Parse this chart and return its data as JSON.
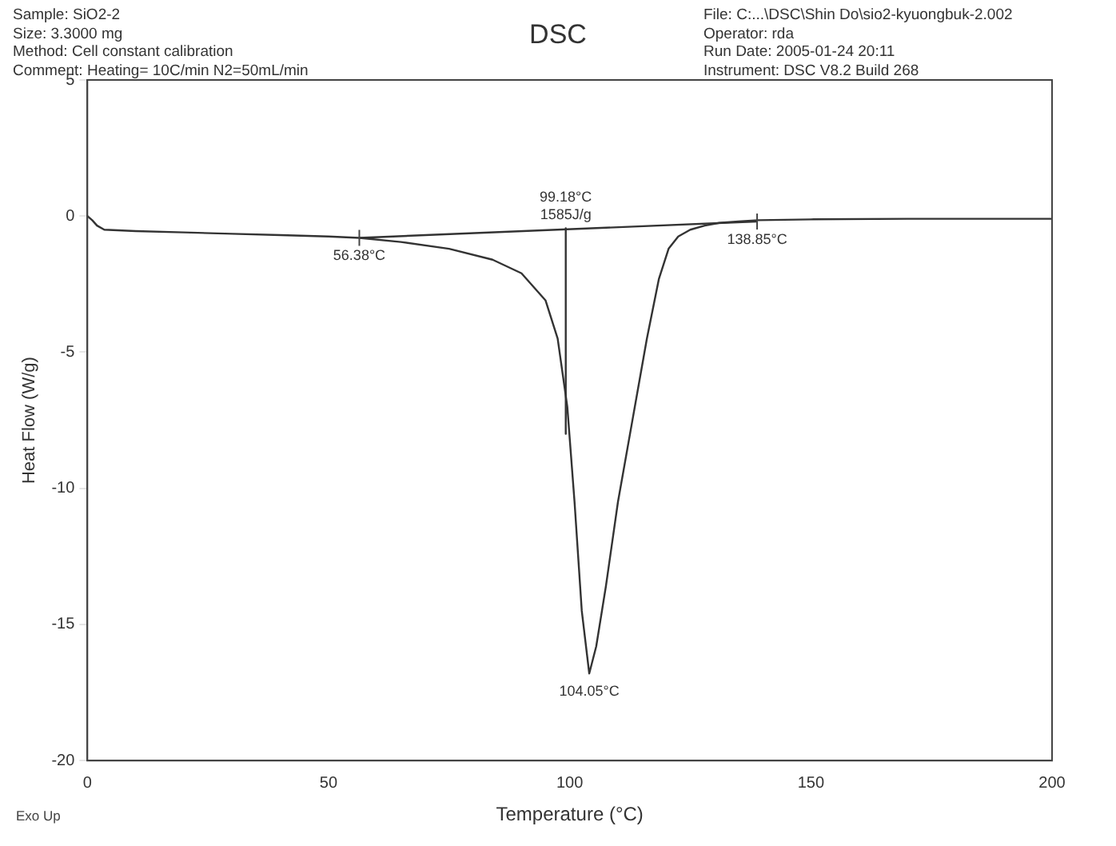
{
  "chart_data": {
    "type": "line",
    "title": "DSC",
    "xlabel": "Temperature (°C)",
    "ylabel": "Heat Flow (W/g)",
    "xlim": [
      0,
      200
    ],
    "xticks": [
      0,
      50,
      100,
      150,
      200
    ],
    "ylim": [
      -20,
      5
    ],
    "yticks": [
      -20,
      -15,
      -10,
      -5,
      0,
      5
    ],
    "grid": false,
    "legend": false,
    "marker": "none",
    "line_style": "solid",
    "series": [
      {
        "color": "#333333",
        "x": [
          0,
          1,
          2,
          3.5,
          10,
          20,
          30,
          40,
          50,
          56.4,
          65,
          75,
          84,
          90,
          95,
          97.5,
          99.5,
          101,
          102.5,
          104.05,
          105.5,
          107.5,
          110,
          113,
          116,
          118.5,
          120.5,
          122.5,
          125,
          128,
          131,
          135,
          139,
          150,
          170,
          200
        ],
        "values": [
          0,
          -0.15,
          -0.35,
          -0.5,
          -0.55,
          -0.6,
          -0.65,
          -0.7,
          -0.75,
          -0.8,
          -0.95,
          -1.2,
          -1.6,
          -2.1,
          -3.1,
          -4.5,
          -7,
          -10.5,
          -14.5,
          -16.8,
          -15.8,
          -13.6,
          -10.5,
          -7.5,
          -4.5,
          -2.3,
          -1.2,
          -0.75,
          -0.5,
          -0.35,
          -0.25,
          -0.2,
          -0.15,
          -0.12,
          -0.1,
          -0.1
        ]
      },
      {
        "color": "#333333",
        "x": [
          56.38,
          138.85
        ],
        "values": [
          -0.8,
          -0.2
        ]
      },
      {
        "color": "#333333",
        "x": [
          99.18,
          99.18
        ],
        "values": [
          -0.45,
          -8
        ]
      }
    ],
    "annotations": [
      "Sample: SiO2-2",
      "Size:  3.3000 mg",
      "Method: Cell constant calibration",
      "Comment: Heating= 10C/min N2=50mL/min",
      "File: C:...\\DSC\\Shin Do\\sio2-kyuongbuk-2.002",
      "Operator: rda",
      "Run Date: 2005-01-24 20:11",
      "Instrument: DSC V8.2 Build 268",
      "Exo Up",
      {
        "text": "56.38°C",
        "x": 56.38,
        "y": -0.8
      },
      {
        "text": "99.18°C\n1585J/g",
        "x": 99.18,
        "y": -0.45
      },
      {
        "text": "138.85°C",
        "x": 138.85,
        "y": -0.2
      },
      {
        "text": "104.05°C",
        "x": 104.05,
        "y": -16.8
      }
    ]
  }
}
